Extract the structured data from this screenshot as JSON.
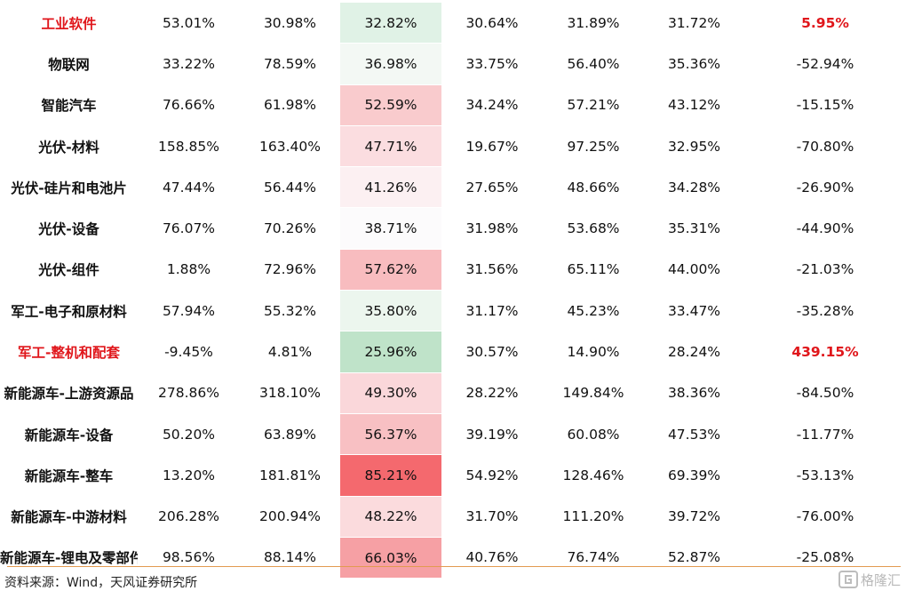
{
  "table": {
    "rows": [
      {
        "name": "工业软件",
        "name_red": true,
        "v": [
          "53.01%",
          "30.98%",
          "32.82%",
          "30.64%",
          "31.89%",
          "31.72%",
          "5.95%"
        ],
        "last_red": true,
        "hl": "#e0f2e6"
      },
      {
        "name": "物联网",
        "name_red": false,
        "v": [
          "33.22%",
          "78.59%",
          "36.98%",
          "33.75%",
          "56.40%",
          "35.36%",
          "-52.94%"
        ],
        "last_red": false,
        "hl": "#f3f8f4"
      },
      {
        "name": "智能汽车",
        "name_red": false,
        "v": [
          "76.66%",
          "61.98%",
          "52.59%",
          "34.24%",
          "57.21%",
          "43.12%",
          "-15.15%"
        ],
        "last_red": false,
        "hl": "#f9cbcd"
      },
      {
        "name": "光伏-材料",
        "name_red": false,
        "v": [
          "158.85%",
          "163.40%",
          "47.71%",
          "19.67%",
          "97.25%",
          "32.95%",
          "-70.80%"
        ],
        "last_red": false,
        "hl": "#fbdde0"
      },
      {
        "name": "光伏-硅片和电池片",
        "name_red": false,
        "v": [
          "47.44%",
          "56.44%",
          "41.26%",
          "27.65%",
          "48.66%",
          "34.28%",
          "-26.90%"
        ],
        "last_red": false,
        "hl": "#fcf0f2"
      },
      {
        "name": "光伏-设备",
        "name_red": false,
        "v": [
          "76.07%",
          "70.26%",
          "38.71%",
          "31.98%",
          "53.68%",
          "35.31%",
          "-44.90%"
        ],
        "last_red": false,
        "hl": "#fcfbfc"
      },
      {
        "name": "光伏-组件",
        "name_red": false,
        "v": [
          "1.88%",
          "72.96%",
          "57.62%",
          "31.56%",
          "65.11%",
          "44.00%",
          "-21.03%"
        ],
        "last_red": false,
        "hl": "#f8bcbf"
      },
      {
        "name": "军工-电子和原材料",
        "name_red": false,
        "v": [
          "57.94%",
          "55.32%",
          "35.80%",
          "31.17%",
          "45.23%",
          "33.47%",
          "-35.28%"
        ],
        "last_red": false,
        "hl": "#ecf6ee"
      },
      {
        "name": "军工-整机和配套",
        "name_red": true,
        "v": [
          "-9.45%",
          "4.81%",
          "25.96%",
          "30.57%",
          "14.90%",
          "28.24%",
          "439.15%"
        ],
        "last_red": true,
        "hl": "#bfe3c9"
      },
      {
        "name": "新能源车-上游资源品",
        "name_red": false,
        "v": [
          "278.86%",
          "318.10%",
          "49.30%",
          "28.22%",
          "149.84%",
          "38.36%",
          "-84.50%"
        ],
        "last_red": false,
        "hl": "#fad7da"
      },
      {
        "name": "新能源车-设备",
        "name_red": false,
        "v": [
          "50.20%",
          "63.89%",
          "56.37%",
          "39.19%",
          "60.08%",
          "47.53%",
          "-11.77%"
        ],
        "last_red": false,
        "hl": "#f8c0c3"
      },
      {
        "name": "新能源车-整车",
        "name_red": false,
        "v": [
          "13.20%",
          "181.81%",
          "85.21%",
          "54.92%",
          "128.46%",
          "69.39%",
          "-53.13%"
        ],
        "last_red": false,
        "hl": "#f4696e"
      },
      {
        "name": "新能源车-中游材料",
        "name_red": false,
        "v": [
          "206.28%",
          "200.94%",
          "48.22%",
          "31.70%",
          "111.20%",
          "39.72%",
          "-76.00%"
        ],
        "last_red": false,
        "hl": "#fbdbdd"
      },
      {
        "name": "新能源车-锂电及零部件",
        "name_red": false,
        "v": [
          "98.56%",
          "88.14%",
          "66.03%",
          "40.76%",
          "76.74%",
          "52.87%",
          "-25.08%"
        ],
        "last_red": false,
        "hl": "#f6a0a4"
      }
    ]
  },
  "footer": {
    "source": "资料来源：Wind，天风证券研究所",
    "brand": "格隆汇",
    "brand_icon": "gelonghui-logo-icon",
    "rule_color": "#e39a51"
  }
}
